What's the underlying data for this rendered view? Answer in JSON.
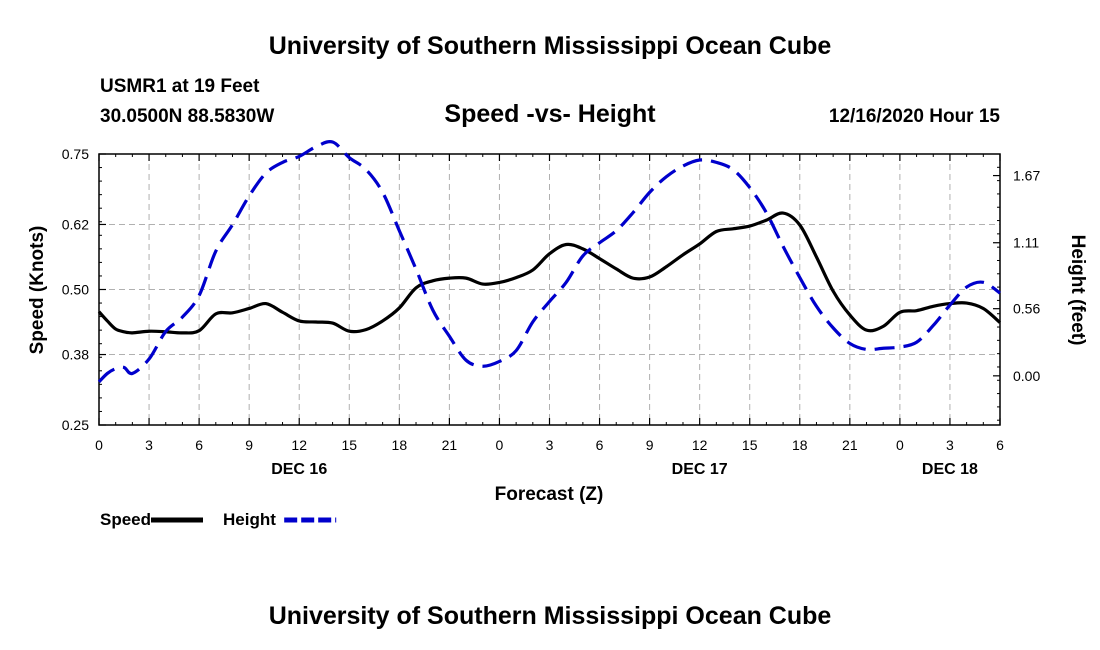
{
  "page": {
    "top_title": "University of Southern Mississippi Ocean Cube",
    "bottom_title": "University of Southern Mississippi Ocean Cube",
    "station": "USMR1 at 19 Feet",
    "location": "30.0500N 88.5830W",
    "datetime": "12/16/2020 Hour 15"
  },
  "chart_data": {
    "type": "line",
    "title": "Speed -vs- Height",
    "xlabel": "Forecast (Z)",
    "ylabel": "Speed (Knots)",
    "y2label": "Height (feet)",
    "ylim": [
      0.25,
      0.75
    ],
    "y2lim": [
      -0.41,
      1.85
    ],
    "xlim": [
      0,
      54
    ],
    "grid": true,
    "legend_position": "bottom-left",
    "x_ticks": [
      0,
      3,
      6,
      9,
      12,
      15,
      18,
      21,
      24,
      27,
      30,
      33,
      36,
      39,
      42,
      45,
      48,
      51,
      54
    ],
    "x_tick_labels": [
      "0",
      "3",
      "6",
      "9",
      "12",
      "15",
      "18",
      "21",
      "0",
      "3",
      "6",
      "9",
      "12",
      "15",
      "18",
      "21",
      "0",
      "3",
      "6"
    ],
    "day_labels": [
      {
        "x": 12,
        "label": "DEC 16"
      },
      {
        "x": 36,
        "label": "DEC 17"
      },
      {
        "x": 51,
        "label": "DEC 18"
      }
    ],
    "y_ticks": [
      0.25,
      0.38,
      0.5,
      0.62,
      0.75
    ],
    "y_tick_labels": [
      "0.25",
      "0.38",
      "0.50",
      "0.62",
      "0.75"
    ],
    "y2_ticks": [
      0.0,
      0.56,
      1.11,
      1.67
    ],
    "y2_tick_labels": [
      "0.00",
      "0.56",
      "1.11",
      "1.67"
    ],
    "series": [
      {
        "name": "Speed",
        "axis": "left",
        "color": "#000000",
        "style": "solid",
        "x": [
          0,
          0.5,
          1,
          1.5,
          2,
          3,
          4,
          5,
          6,
          7,
          8,
          9,
          10,
          11,
          12,
          13,
          14,
          15,
          16,
          17,
          18,
          19,
          20,
          21,
          22,
          23,
          24,
          25,
          26,
          27,
          28,
          29,
          30,
          31,
          32,
          33,
          34,
          35,
          36,
          37,
          38,
          39,
          40,
          41,
          42,
          43,
          44,
          45,
          46,
          47,
          48,
          49,
          50,
          51,
          52,
          53,
          54
        ],
        "values": [
          0.459,
          0.442,
          0.427,
          0.422,
          0.42,
          0.423,
          0.422,
          0.42,
          0.424,
          0.455,
          0.457,
          0.465,
          0.474,
          0.458,
          0.442,
          0.44,
          0.438,
          0.423,
          0.426,
          0.442,
          0.466,
          0.503,
          0.516,
          0.521,
          0.521,
          0.51,
          0.513,
          0.522,
          0.536,
          0.566,
          0.583,
          0.575,
          0.557,
          0.538,
          0.521,
          0.523,
          0.542,
          0.564,
          0.584,
          0.607,
          0.612,
          0.617,
          0.628,
          0.641,
          0.619,
          0.56,
          0.497,
          0.453,
          0.425,
          0.432,
          0.458,
          0.461,
          0.469,
          0.474,
          0.475,
          0.465,
          0.439
        ]
      },
      {
        "name": "Height",
        "axis": "right",
        "color": "#0000cc",
        "style": "dashed",
        "x": [
          0,
          0.5,
          1,
          1.5,
          2,
          3,
          4,
          5,
          6,
          7,
          8,
          9,
          10,
          11,
          12,
          13,
          14,
          15,
          16,
          17,
          18,
          19,
          20,
          21,
          22,
          23,
          24,
          25,
          26,
          27,
          28,
          29,
          30,
          31,
          32,
          33,
          34,
          35,
          36,
          37,
          38,
          39,
          40,
          41,
          42,
          43,
          44,
          45,
          46,
          47,
          48,
          49,
          50,
          51,
          52,
          53,
          54
        ],
        "values": [
          -0.05,
          0.02,
          0.06,
          0.07,
          0.02,
          0.14,
          0.37,
          0.49,
          0.67,
          1.04,
          1.26,
          1.5,
          1.69,
          1.78,
          1.83,
          1.91,
          1.95,
          1.82,
          1.72,
          1.53,
          1.21,
          0.89,
          0.55,
          0.33,
          0.13,
          0.08,
          0.12,
          0.21,
          0.45,
          0.62,
          0.78,
          1.0,
          1.11,
          1.21,
          1.36,
          1.53,
          1.66,
          1.75,
          1.8,
          1.78,
          1.72,
          1.57,
          1.36,
          1.08,
          0.82,
          0.58,
          0.4,
          0.27,
          0.22,
          0.23,
          0.24,
          0.28,
          0.42,
          0.59,
          0.74,
          0.78,
          0.69
        ]
      }
    ],
    "legend": [
      {
        "label": "Speed",
        "color": "#000000",
        "style": "solid"
      },
      {
        "label": "Height",
        "color": "#0000cc",
        "style": "dashed"
      }
    ]
  }
}
